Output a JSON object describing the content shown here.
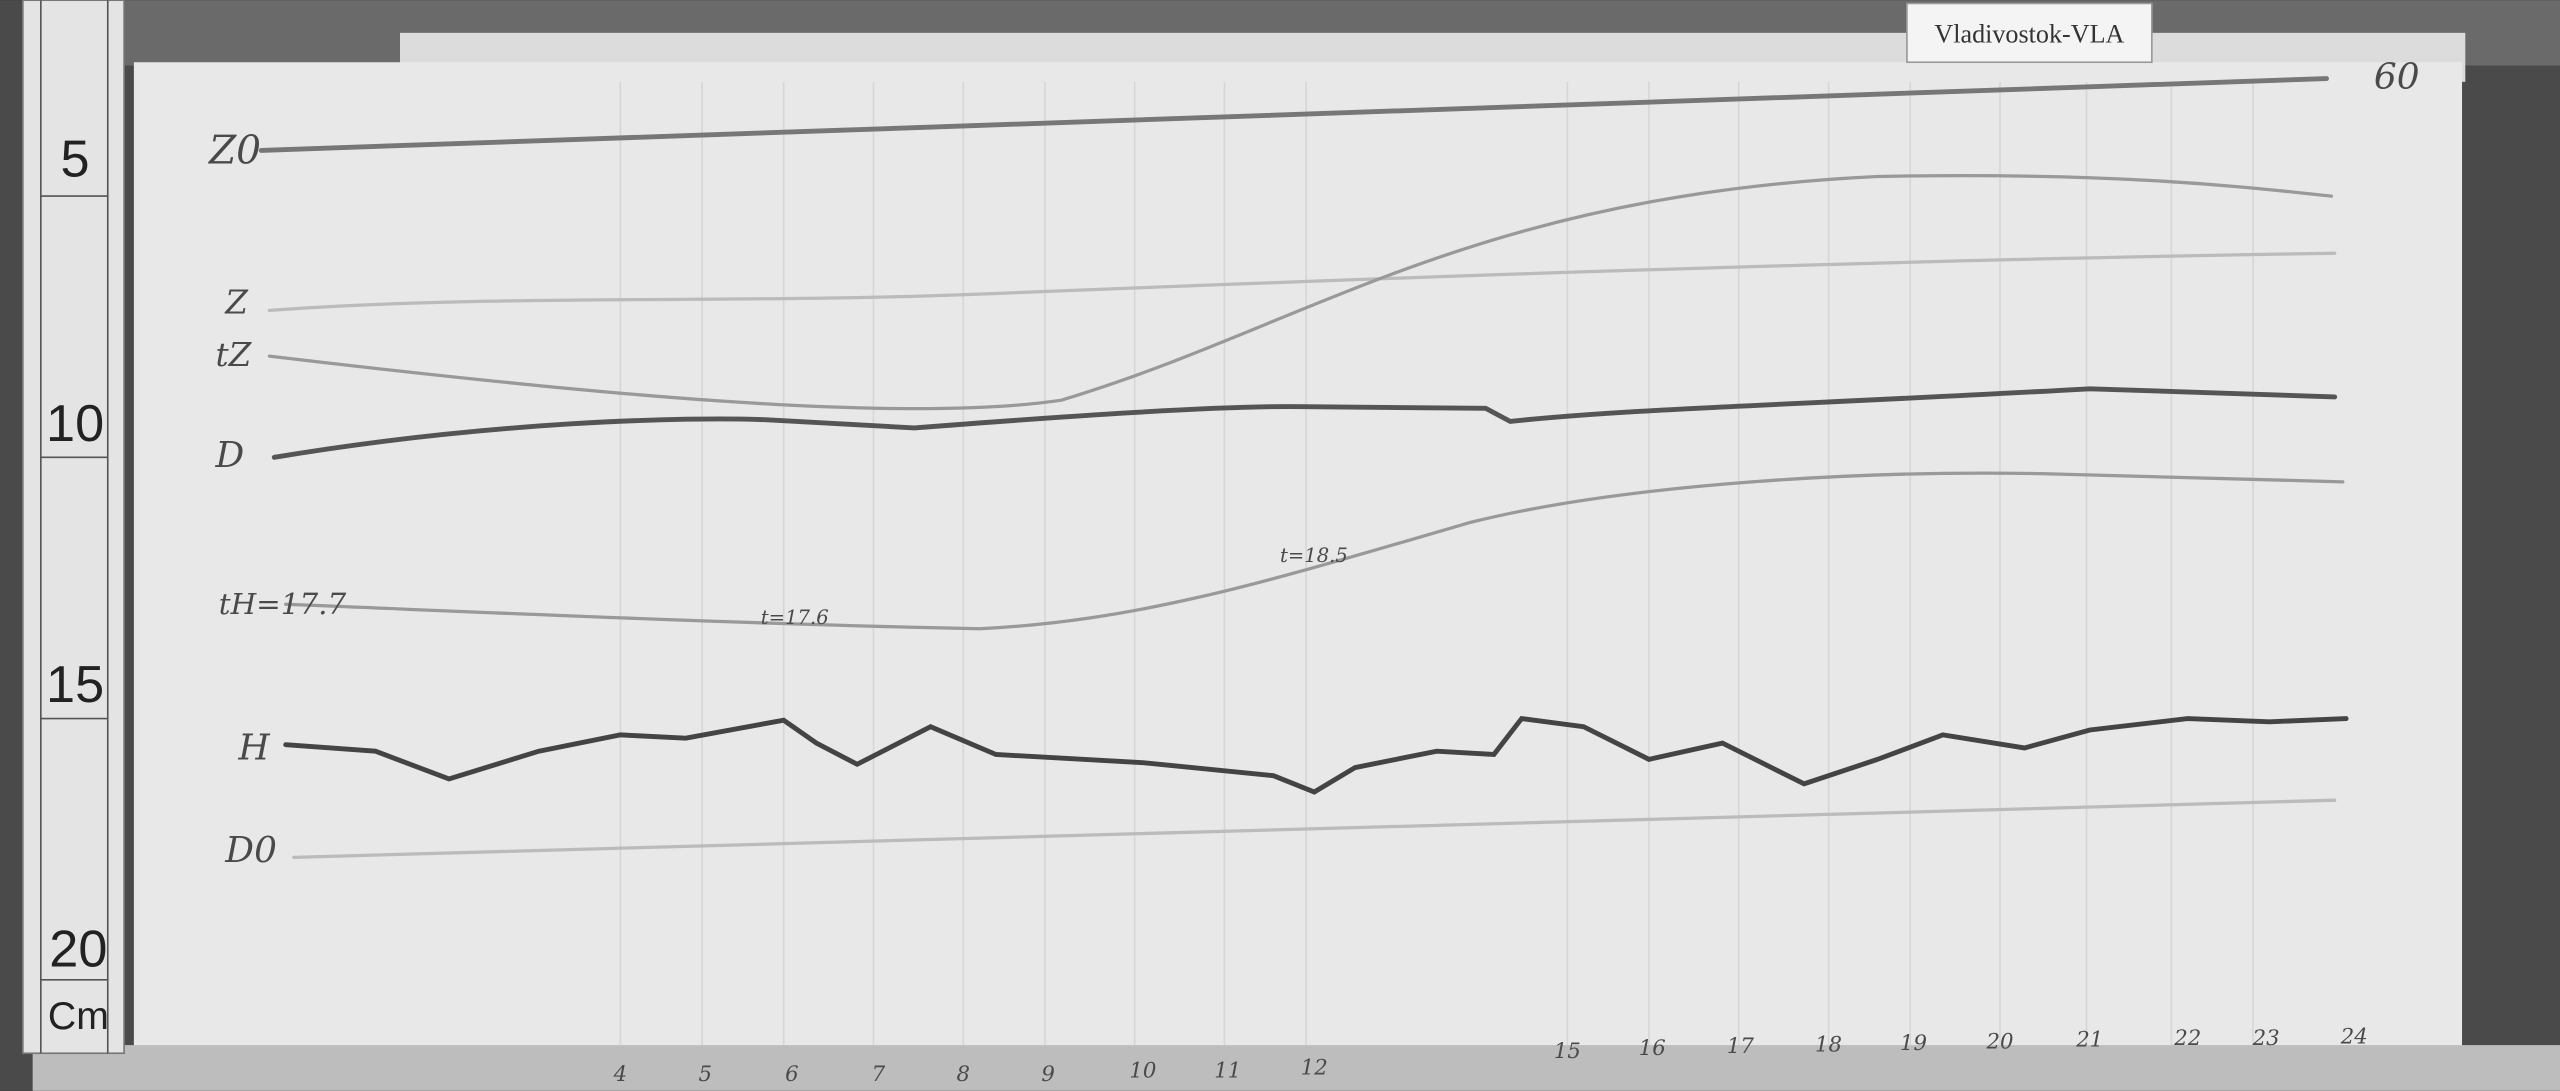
{
  "label_tag": "Vladivostok-VLA",
  "sheet_number": "60",
  "ruler": {
    "marks": [
      "5",
      "10",
      "15",
      "20"
    ],
    "unit": "Cm"
  },
  "trace_labels": [
    "Z0",
    "Z",
    "tZ",
    "D",
    "tH=17.7",
    "H",
    "D0"
  ],
  "annotations": [
    "t=17.6",
    "t=18.5"
  ],
  "hours": [
    "4",
    "5",
    "6",
    "7",
    "8",
    "9",
    "10",
    "11",
    "12",
    "15",
    "16",
    "17",
    "18",
    "19",
    "20",
    "21",
    "22",
    "23",
    "24"
  ]
}
